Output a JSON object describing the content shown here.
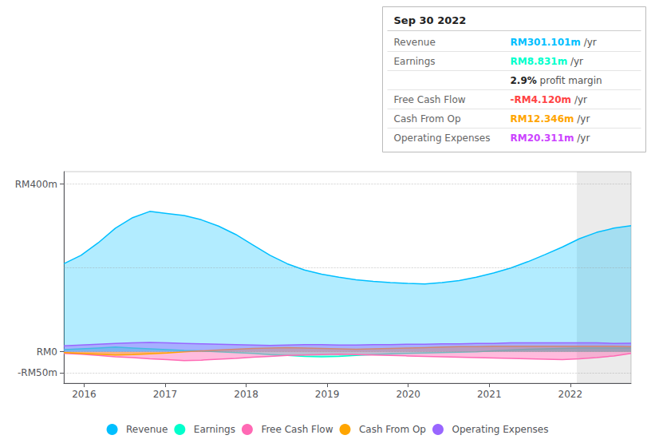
{
  "chart_data": {
    "type": "area",
    "x": [
      2015.75,
      2015.9621212121,
      2016.1742424242,
      2016.3863636364,
      2016.5984848485,
      2016.8106060606,
      2017.0227272727,
      2017.2348484848,
      2017.446969697,
      2017.6590909091,
      2017.8712121212,
      2018.0833333333,
      2018.2954545455,
      2018.5075757576,
      2018.7196969697,
      2018.9318181818,
      2019.1439393939,
      2019.3560606061,
      2019.5681818182,
      2019.7803030303,
      2019.9924242424,
      2020.2045454545,
      2020.4166666667,
      2020.6287878788,
      2020.8409090909,
      2021.053030303,
      2021.2651515152,
      2021.4772727273,
      2021.6893939394,
      2021.9015151515,
      2022.1136363636,
      2022.3257575758,
      2022.5378787879,
      2022.75
    ],
    "series": [
      {
        "name": "Revenue",
        "color": "#00bfff",
        "values": [
          210,
          230,
          260,
          295,
          320,
          335,
          330,
          325,
          315,
          300,
          280,
          255,
          230,
          210,
          195,
          185,
          178,
          172,
          168,
          165,
          163,
          162,
          165,
          170,
          178,
          188,
          200,
          215,
          232,
          250,
          270,
          285,
          295,
          301
        ]
      },
      {
        "name": "Earnings",
        "color": "#00ffcc",
        "values": [
          5,
          7,
          9,
          11,
          9,
          7,
          5,
          3,
          2,
          0,
          -2,
          -4,
          -7,
          -9,
          -11,
          -12,
          -11,
          -9,
          -7,
          -5,
          -4,
          -3,
          -2,
          -1,
          0,
          2,
          4,
          6,
          7,
          8,
          9,
          9,
          9,
          8.831
        ]
      },
      {
        "name": "Free Cash Flow",
        "color": "#ff69b4",
        "values": [
          -4,
          -6,
          -9,
          -12,
          -14,
          -17,
          -19,
          -21,
          -20,
          -18,
          -16,
          -13,
          -11,
          -9,
          -8,
          -7,
          -6,
          -7,
          -8,
          -9,
          -10,
          -11,
          -12,
          -13,
          -14,
          -15,
          -16,
          -17,
          -18,
          -19,
          -17,
          -14,
          -10,
          -4.12
        ]
      },
      {
        "name": "Cash From Op",
        "color": "#ffa500",
        "values": [
          -2,
          -4,
          -6,
          -8,
          -7,
          -5,
          -3,
          0,
          2,
          4,
          6,
          8,
          9,
          10,
          9,
          8,
          7,
          6,
          7,
          8,
          9,
          10,
          11,
          12,
          12,
          13,
          13,
          13,
          13,
          13,
          13,
          13,
          13,
          12.346
        ]
      },
      {
        "name": "Operating Expenses",
        "color": "#9966ff",
        "values": [
          14,
          16,
          18,
          20,
          21,
          22,
          21,
          20,
          19,
          18,
          17,
          16,
          15,
          16,
          17,
          17,
          16,
          16,
          17,
          17,
          18,
          18,
          19,
          19,
          20,
          20,
          21,
          21,
          21,
          21,
          21,
          21,
          20,
          20.311
        ]
      }
    ],
    "xlim": [
      2015.75,
      2022.75
    ],
    "xticks": [
      2016,
      2017,
      2018,
      2019,
      2020,
      2021,
      2022
    ],
    "ylim": [
      -75,
      430
    ],
    "yticks": [
      {
        "value": 400,
        "label": "RM400m"
      },
      {
        "value": 0,
        "label": "RM0"
      },
      {
        "value": -50,
        "label": "-RM50m"
      }
    ],
    "hlines": [
      0,
      200,
      400,
      -50
    ],
    "highlight": [
      2022.08,
      2022.75
    ],
    "grid": false,
    "legend": "bottom",
    "info_box": {
      "title": "Sep 30 2022",
      "rows": [
        {
          "label": "Revenue",
          "value": "RM301.101m",
          "suffix": " /yr",
          "color": "#00bfff"
        },
        {
          "label": "Earnings",
          "value": "RM8.831m",
          "suffix": " /yr",
          "color": "#00ffcc"
        },
        {
          "value": "2.9%",
          "suffix": " profit margin"
        },
        {
          "label": "Free Cash Flow",
          "value": "-RM4.120m",
          "suffix": " /yr",
          "color": "#ff4444"
        },
        {
          "label": "Cash From Op",
          "value": "RM12.346m",
          "suffix": " /yr",
          "color": "#ffa500"
        },
        {
          "label": "Operating Expenses",
          "value": "RM20.311m",
          "suffix": " /yr",
          "color": "#cc44ff"
        }
      ]
    }
  }
}
